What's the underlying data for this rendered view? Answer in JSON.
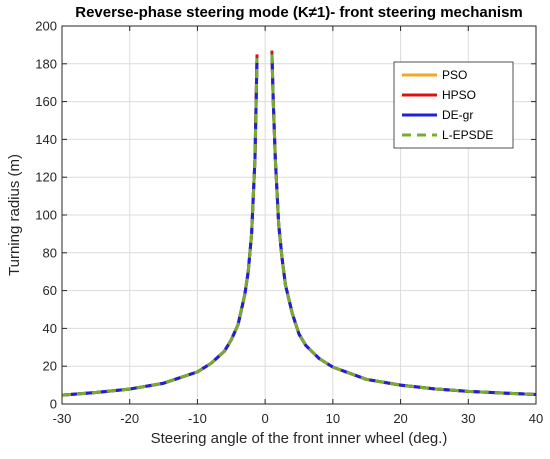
{
  "chart_data": {
    "type": "line",
    "title": "Reverse-phase steering mode (K≠1)- front steering mechanism",
    "xlabel": "Steering angle of the front inner wheel (deg.)",
    "ylabel": "Turning radius (m)",
    "xlim": [
      -30,
      40
    ],
    "ylim": [
      0,
      200
    ],
    "xticks": [
      -30,
      -20,
      -10,
      0,
      10,
      20,
      30,
      40
    ],
    "yticks": [
      0,
      20,
      40,
      60,
      80,
      100,
      120,
      140,
      160,
      180,
      200
    ],
    "grid": true,
    "legend_position": "top-right",
    "series": [
      {
        "name": "PSO",
        "color": "#f5a623",
        "dash": "solid",
        "x": [
          -30,
          -25,
          -20,
          -15,
          -10,
          -8,
          -6,
          -5,
          -4,
          -3,
          -2.5,
          -2,
          -1.5,
          -1.2,
          null,
          1,
          1.2,
          1.5,
          2,
          2.5,
          3,
          4,
          5,
          6,
          8,
          10,
          15,
          20,
          25,
          30,
          35,
          40
        ],
        "y": [
          4.7,
          6.1,
          7.9,
          11,
          17,
          21.5,
          28,
          34,
          42,
          58,
          70,
          90,
          130,
          184,
          null,
          186,
          160,
          130,
          95,
          77,
          63,
          48,
          37,
          31,
          24,
          19.5,
          13,
          10,
          8,
          6.7,
          5.8,
          5
        ]
      },
      {
        "name": "HPSO",
        "color": "#e01010",
        "dash": "solid",
        "x": [
          -30,
          -25,
          -20,
          -15,
          -10,
          -8,
          -6,
          -5,
          -4,
          -3,
          -2.5,
          -2,
          -1.5,
          -1.2,
          null,
          1,
          1.2,
          1.5,
          2,
          2.5,
          3,
          4,
          5,
          6,
          8,
          10,
          15,
          20,
          25,
          30,
          35,
          40
        ],
        "y": [
          4.7,
          6.1,
          7.9,
          11,
          17,
          21.5,
          28,
          34,
          42,
          58,
          70,
          90,
          130,
          185,
          null,
          187,
          160,
          130,
          95,
          77,
          63,
          48,
          37,
          31,
          24,
          19.5,
          13,
          10,
          8,
          6.7,
          5.8,
          5
        ]
      },
      {
        "name": "DE-gr",
        "color": "#1f1fdc",
        "dash": "solid",
        "x": [
          -30,
          -25,
          -20,
          -15,
          -10,
          -8,
          -6,
          -5,
          -4,
          -3,
          -2.5,
          -2,
          -1.5,
          -1.2,
          null,
          1,
          1.2,
          1.5,
          2,
          2.5,
          3,
          4,
          5,
          6,
          8,
          10,
          15,
          20,
          25,
          30,
          35,
          40
        ],
        "y": [
          4.7,
          6.1,
          7.9,
          11,
          17,
          21.5,
          28,
          34,
          42,
          58,
          70,
          90,
          130,
          183,
          null,
          185,
          160,
          130,
          95,
          77,
          63,
          48,
          37,
          31,
          24,
          19.5,
          13,
          10,
          8,
          6.7,
          5.8,
          5
        ]
      },
      {
        "name": "L-EPSDE",
        "color": "#77ac30",
        "dash": "dashed",
        "x": [
          -30,
          -25,
          -20,
          -15,
          -10,
          -8,
          -6,
          -5,
          -4,
          -3,
          -2.5,
          -2,
          -1.5,
          -1.2,
          null,
          1,
          1.2,
          1.5,
          2,
          2.5,
          3,
          4,
          5,
          6,
          8,
          10,
          15,
          20,
          25,
          30,
          35,
          40
        ],
        "y": [
          4.7,
          6.1,
          7.9,
          11,
          17,
          21.5,
          28,
          34,
          42,
          58,
          70,
          90,
          130,
          183,
          null,
          185,
          160,
          130,
          95,
          77,
          63,
          48,
          37,
          31,
          24,
          19.5,
          13,
          10,
          8,
          6.7,
          5.8,
          5
        ]
      }
    ]
  }
}
